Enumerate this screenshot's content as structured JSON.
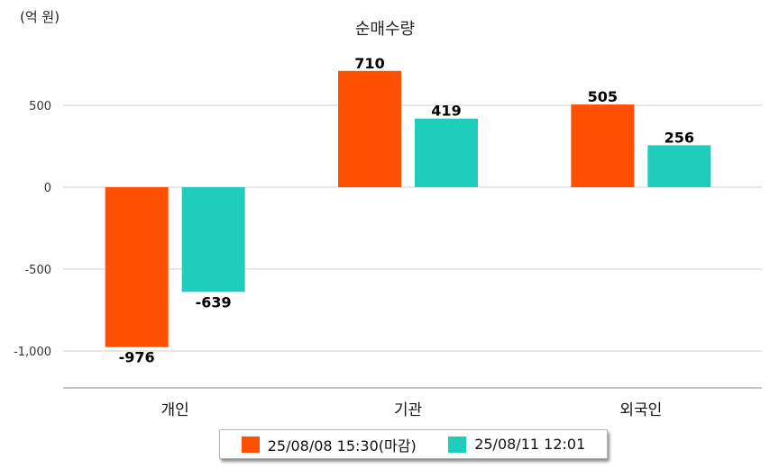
{
  "chart_data": {
    "type": "bar",
    "title": "순매수량",
    "unit_label": "(억 원)",
    "categories": [
      "개인",
      "기관",
      "외국인"
    ],
    "series": [
      {
        "name": "25/08/08 15:30(마감)",
        "color": "#ff5000",
        "values": [
          -976,
          710,
          505
        ]
      },
      {
        "name": "25/08/11 12:01",
        "color": "#1ecdbb",
        "values": [
          -639,
          419,
          256
        ]
      }
    ],
    "yticks": [
      500,
      0,
      -500,
      -1000
    ],
    "ytick_labels": [
      "500",
      "0",
      "-500",
      "-1,000"
    ],
    "ylim": [
      -1200,
      900
    ],
    "grid": true,
    "legend_position": "bottom"
  }
}
